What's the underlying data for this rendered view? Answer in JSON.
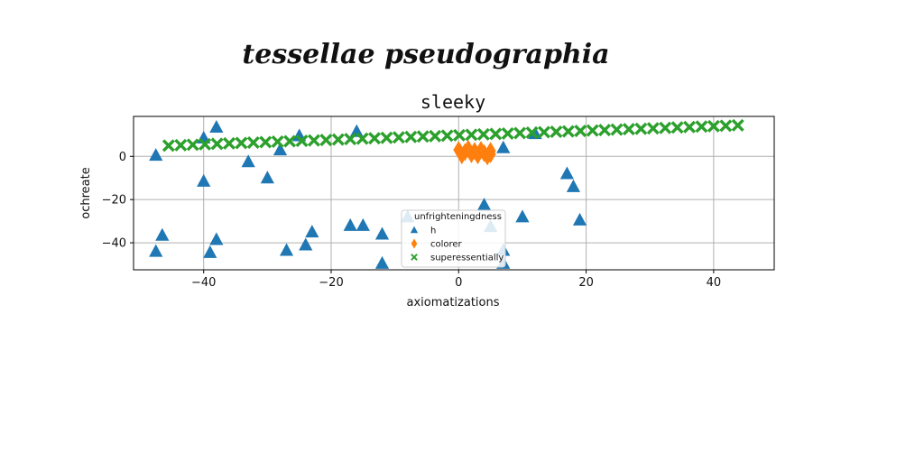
{
  "chart_data": {
    "type": "scatter",
    "suptitle": "tessellae pseudographia",
    "title": "sleeky",
    "xlabel": "axiomatizations",
    "ylabel": "ochreate",
    "xlim": [
      -51,
      49.5
    ],
    "ylim": [
      -52.5,
      18.5
    ],
    "xticks": [
      -40,
      -20,
      0,
      20,
      40
    ],
    "yticks": [
      0,
      -20,
      -40
    ],
    "xtick_labels": [
      "−40",
      "−20",
      "0",
      "20",
      "40"
    ],
    "ytick_labels": [
      "0",
      "−20",
      "−40"
    ],
    "grid": true,
    "legend": {
      "title": "unfrighteningdness",
      "placement": "lower-center"
    },
    "series": [
      {
        "name": "h",
        "marker": "triangle",
        "color": "#1f77b4",
        "points": [
          [
            -47.5,
            0.5
          ],
          [
            -47.5,
            -44
          ],
          [
            -46.5,
            -36.5
          ],
          [
            -40,
            8.5
          ],
          [
            -40,
            -11.5
          ],
          [
            -39,
            -44.5
          ],
          [
            -38,
            13.5
          ],
          [
            -38,
            -38.5
          ],
          [
            -33,
            -2.5
          ],
          [
            -30,
            -10
          ],
          [
            -28,
            3
          ],
          [
            -27,
            -43.5
          ],
          [
            -25,
            9.5
          ],
          [
            -24,
            -41
          ],
          [
            -23,
            -35
          ],
          [
            -17,
            -32
          ],
          [
            -16,
            11.5
          ],
          [
            -15,
            -32
          ],
          [
            -12,
            -36
          ],
          [
            -12,
            -49.5
          ],
          [
            -8,
            -28
          ],
          [
            4,
            -22.5
          ],
          [
            5,
            -32.5
          ],
          [
            7,
            4
          ],
          [
            7,
            -43.5
          ],
          [
            7,
            -49.5
          ],
          [
            10,
            -28
          ],
          [
            12,
            10.5
          ],
          [
            17,
            -8
          ],
          [
            18,
            -14
          ],
          [
            19,
            -29.5
          ]
        ]
      },
      {
        "name": "colorer",
        "marker": "diamond",
        "color": "#ff7f0e",
        "points": [
          [
            0,
            3
          ],
          [
            0.5,
            0.5
          ],
          [
            1,
            2
          ],
          [
            1.5,
            3.5
          ],
          [
            2,
            1
          ],
          [
            2.5,
            2.5
          ],
          [
            3,
            0.5
          ],
          [
            3.5,
            3
          ],
          [
            4,
            1.5
          ],
          [
            4.5,
            0
          ],
          [
            5,
            2.5
          ],
          [
            5,
            1
          ]
        ]
      },
      {
        "name": "superessentially",
        "marker": "x",
        "color": "#2ca02c",
        "line": {
          "x_start": -45.5,
          "x_end": 45,
          "step": 1.9,
          "y_start": 5,
          "y_end": 14.5
        }
      }
    ]
  }
}
